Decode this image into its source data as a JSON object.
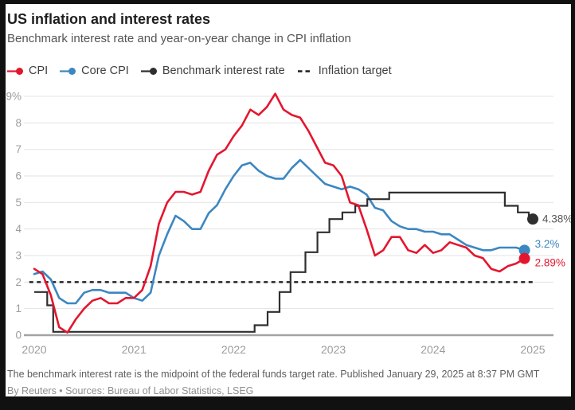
{
  "header": {
    "title": "US inflation and interest rates",
    "subtitle": "Benchmark interest rate and year-on-year change in CPI inflation"
  },
  "footer": {
    "note": "The benchmark interest rate is the midpoint of the federal funds target rate. Published January 29, 2025 at 8:37 PM GMT",
    "source": "By Reuters • Sources: Bureau of Labor Statistics, LSEG"
  },
  "colors": {
    "cpi": "#e4162f",
    "core_cpi": "#3b87c2",
    "benchmark": "#2f2f2f",
    "target": "#1f1f1f",
    "grid": "#e3e3e3",
    "axis": "#a3a3a3",
    "tick_text": "#9c9c9c",
    "benchmark_label_text": "#565656",
    "card_bg": "#ffffff",
    "page_bg": "#111111"
  },
  "chart_data": {
    "type": "line",
    "title": "US inflation and interest rates",
    "subtitle": "Benchmark interest rate and year-on-year change in CPI inflation",
    "x_start_year": 2020,
    "x_end_year": 2025.35,
    "x_ticks": [
      "2020",
      "2021",
      "2022",
      "2023",
      "2024",
      "2025"
    ],
    "ylim": [
      0,
      9
    ],
    "y_ticks": [
      "0",
      "1",
      "2",
      "3",
      "4",
      "5",
      "6",
      "7",
      "8",
      "9%"
    ],
    "grid": true,
    "legend_position": "top",
    "target_line": {
      "label": "Inflation target",
      "value": 2,
      "x_start": 2019.95,
      "x_end": 2025.0
    },
    "monthly_series": [
      {
        "name": "Core CPI",
        "end_label": "3.2%",
        "color_key": "core_cpi",
        "start_year": 2020,
        "values": [
          2.3,
          2.4,
          2.1,
          1.4,
          1.2,
          1.2,
          1.6,
          1.7,
          1.7,
          1.6,
          1.6,
          1.6,
          1.4,
          1.3,
          1.6,
          3.0,
          3.8,
          4.5,
          4.3,
          4.0,
          4.0,
          4.6,
          4.9,
          5.5,
          6.0,
          6.4,
          6.5,
          6.2,
          6.0,
          5.9,
          5.9,
          6.3,
          6.6,
          6.3,
          6.0,
          5.7,
          5.6,
          5.5,
          5.6,
          5.5,
          5.3,
          4.8,
          4.7,
          4.3,
          4.1,
          4.0,
          4.0,
          3.9,
          3.9,
          3.8,
          3.8,
          3.6,
          3.4,
          3.3,
          3.2,
          3.2,
          3.3,
          3.3,
          3.3,
          3.2
        ]
      },
      {
        "name": "CPI",
        "end_label": "2.89%",
        "color_key": "cpi",
        "start_year": 2020,
        "values": [
          2.5,
          2.3,
          1.5,
          0.3,
          0.1,
          0.6,
          1.0,
          1.3,
          1.4,
          1.2,
          1.2,
          1.4,
          1.4,
          1.7,
          2.6,
          4.2,
          5.0,
          5.4,
          5.4,
          5.3,
          5.4,
          6.2,
          6.8,
          7.0,
          7.5,
          7.9,
          8.5,
          8.3,
          8.6,
          9.1,
          8.5,
          8.3,
          8.2,
          7.7,
          7.1,
          6.5,
          6.4,
          6.0,
          5.0,
          4.9,
          4.0,
          3.0,
          3.2,
          3.7,
          3.7,
          3.2,
          3.1,
          3.4,
          3.1,
          3.2,
          3.5,
          3.4,
          3.3,
          3.0,
          2.9,
          2.5,
          2.4,
          2.6,
          2.7,
          2.89
        ]
      }
    ],
    "step_series": {
      "name": "Benchmark interest rate",
      "end_label": "4.38%",
      "color_key": "benchmark",
      "end_t": 2025.0,
      "points": [
        [
          2020.0,
          1.625
        ],
        [
          2020.13,
          1.125
        ],
        [
          2020.19,
          0.125
        ],
        [
          2022.21,
          0.375
        ],
        [
          2022.34,
          0.875
        ],
        [
          2022.46,
          1.625
        ],
        [
          2022.57,
          2.375
        ],
        [
          2022.72,
          3.125
        ],
        [
          2022.84,
          3.875
        ],
        [
          2022.96,
          4.375
        ],
        [
          2023.09,
          4.625
        ],
        [
          2023.22,
          4.875
        ],
        [
          2023.34,
          5.125
        ],
        [
          2023.56,
          5.375
        ],
        [
          2024.72,
          4.875
        ],
        [
          2024.85,
          4.625
        ],
        [
          2024.96,
          4.375
        ]
      ]
    }
  }
}
